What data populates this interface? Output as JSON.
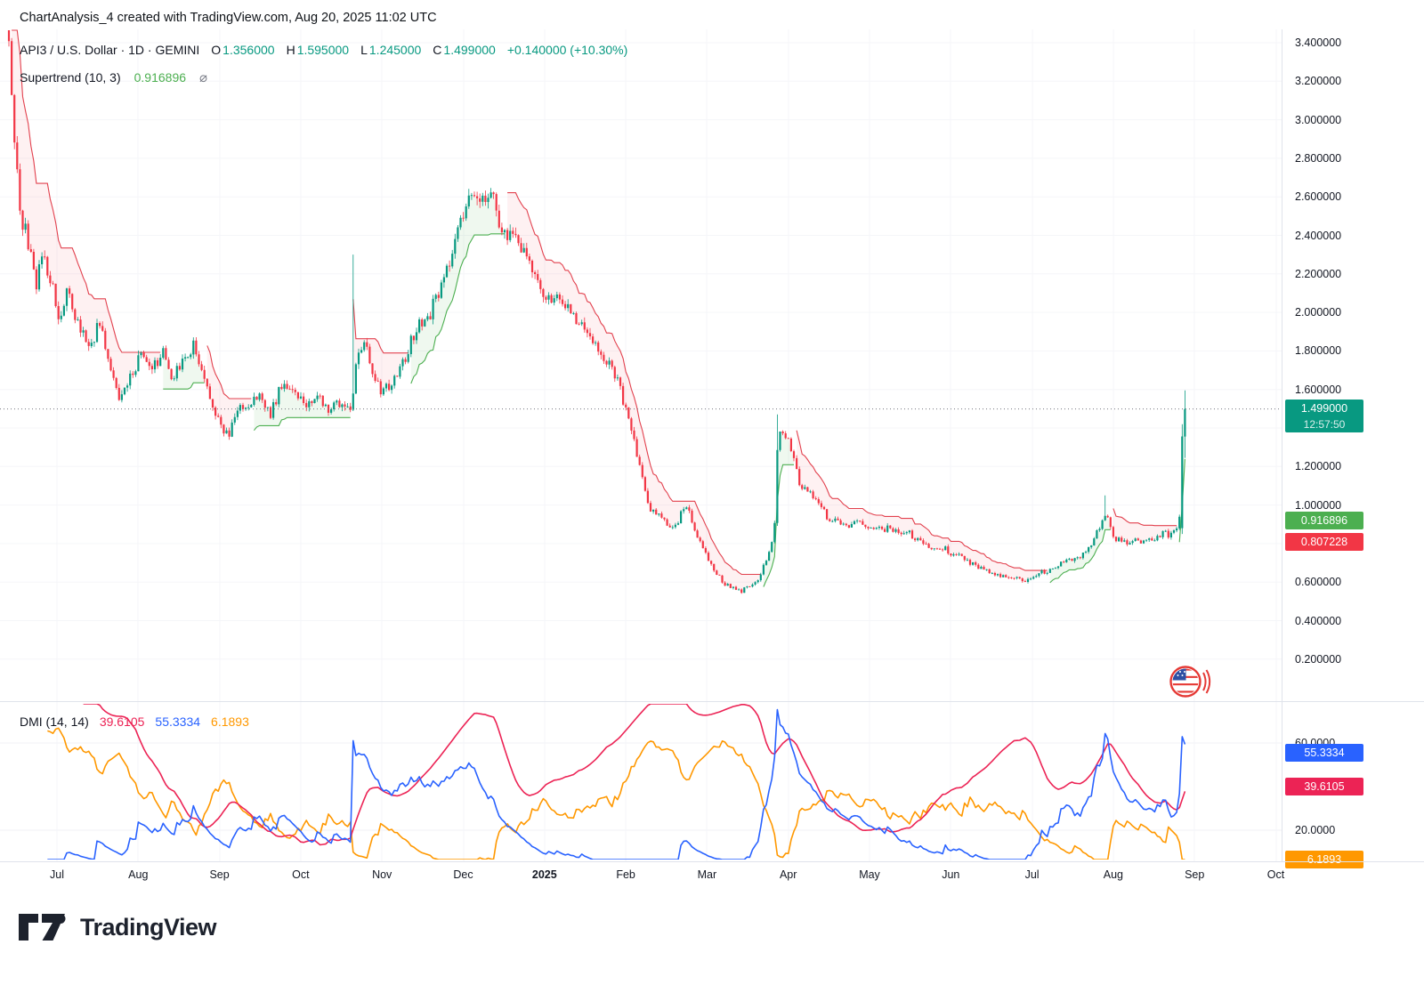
{
  "header": {
    "watermark": "ChartAnalysis_4 created with TradingView.com, Aug 20, 2025 11:02 UTC"
  },
  "legend": {
    "symbol": "API3 / U.S. Dollar · 1D · GEMINI",
    "o_label": "O",
    "o": "1.356000",
    "h_label": "H",
    "h": "1.595000",
    "l_label": "L",
    "l": "1.245000",
    "c_label": "C",
    "c": "1.499000",
    "change": "+0.140000 (+10.30%)",
    "supertrend_label": "Supertrend (10, 3)",
    "supertrend_value": "0.916896",
    "supertrend_icon": "⌀"
  },
  "dmi_legend": {
    "label": "DMI (14, 14)",
    "adx": "39.6105",
    "plus_di": "55.3334",
    "minus_di": "6.1893"
  },
  "price_axis": {
    "ticks": [
      "3.400000",
      "3.200000",
      "3.000000",
      "2.800000",
      "2.600000",
      "2.400000",
      "2.200000",
      "2.000000",
      "1.800000",
      "1.600000",
      "1.200000",
      "1.000000",
      "0.600000",
      "0.400000",
      "0.200000"
    ]
  },
  "dmi_axis": {
    "ticks": [
      "60.0000",
      "20.0000"
    ]
  },
  "time_axis": {
    "labels": [
      "Jul",
      "Aug",
      "Sep",
      "Oct",
      "Nov",
      "Dec",
      "2025",
      "Feb",
      "Mar",
      "Apr",
      "May",
      "Jun",
      "Jul",
      "Aug",
      "Sep",
      "Oct"
    ],
    "bold_index": 6
  },
  "badges": {
    "last_price": {
      "label": "1.499000",
      "countdown": "12:57:50",
      "value": 1.499,
      "color": "#089981"
    },
    "st_up": {
      "label": "0.916896",
      "value": 0.916896,
      "color": "#4caf50"
    },
    "st_down": {
      "label": "0.807228",
      "value": 0.807228,
      "color": "#f23645"
    },
    "dmi_plus": {
      "label": "55.3334",
      "value": 55.3334,
      "color": "#2962ff"
    },
    "dmi_adx": {
      "label": "39.6105",
      "value": 39.6105,
      "color": "#ec2355"
    },
    "dmi_minus": {
      "label": "6.1893",
      "value": 6.1893,
      "color": "#ff9800"
    }
  },
  "branding": {
    "name": "TradingView"
  },
  "colors": {
    "up": "#089981",
    "down": "#f23645",
    "st_up_line": "#4caf50",
    "st_down_line": "#e2414e",
    "st_up_fill": "rgba(76,175,80,0.09)",
    "st_down_fill": "rgba(242,54,69,0.07)",
    "dmi_plus": "#2962ff",
    "dmi_minus": "#ff9800",
    "dmi_adx": "#ec2355",
    "grid": "#f0f1f5",
    "grid_faint": "#f5f6f9",
    "axis_text": "#131722",
    "dotted_price_line": "#73767e"
  },
  "chart_data": {
    "type": "candlestick",
    "symbol": "API3/USD",
    "exchange": "GEMINI",
    "interval": "1D",
    "price_axis_range_shown": [
      0.2,
      3.4
    ],
    "dmi_axis_ticks": [
      20,
      60
    ],
    "last_bar": {
      "open": 1.356,
      "high": 1.595,
      "low": 1.245,
      "close": 1.499,
      "change": 0.14,
      "change_pct": 10.3
    },
    "indicators": {
      "supertrend": {
        "params": [
          10,
          3
        ],
        "last_up_band": 0.916896,
        "last_down_band": 0.807228
      },
      "dmi": {
        "params": [
          14,
          14
        ],
        "adx": 39.6105,
        "plus_di": 55.3334,
        "minus_di": 6.1893
      }
    },
    "close_path_anchors": [
      [
        10,
        3.44
      ],
      [
        16,
        2.9
      ],
      [
        22,
        2.52
      ],
      [
        30,
        2.4
      ],
      [
        40,
        2.14
      ],
      [
        48,
        2.3
      ],
      [
        58,
        2.16
      ],
      [
        66,
        1.97
      ],
      [
        76,
        2.1
      ],
      [
        88,
        1.94
      ],
      [
        100,
        1.82
      ],
      [
        112,
        1.94
      ],
      [
        126,
        1.68
      ],
      [
        135,
        1.53
      ],
      [
        146,
        1.65
      ],
      [
        158,
        1.79
      ],
      [
        170,
        1.68
      ],
      [
        182,
        1.8
      ],
      [
        194,
        1.66
      ],
      [
        206,
        1.74
      ],
      [
        218,
        1.84
      ],
      [
        228,
        1.66
      ],
      [
        238,
        1.52
      ],
      [
        248,
        1.42
      ],
      [
        256,
        1.35
      ],
      [
        268,
        1.5
      ],
      [
        280,
        1.53
      ],
      [
        292,
        1.56
      ],
      [
        304,
        1.47
      ],
      [
        318,
        1.65
      ],
      [
        330,
        1.6
      ],
      [
        344,
        1.52
      ],
      [
        358,
        1.56
      ],
      [
        370,
        1.5
      ],
      [
        382,
        1.53
      ],
      [
        394,
        1.5
      ],
      [
        402,
        1.77
      ],
      [
        410,
        1.83
      ],
      [
        420,
        1.68
      ],
      [
        430,
        1.58
      ],
      [
        440,
        1.63
      ],
      [
        450,
        1.7
      ],
      [
        460,
        1.82
      ],
      [
        470,
        1.95
      ],
      [
        482,
        1.98
      ],
      [
        494,
        2.12
      ],
      [
        506,
        2.25
      ],
      [
        516,
        2.45
      ],
      [
        526,
        2.6
      ],
      [
        536,
        2.62
      ],
      [
        546,
        2.58
      ],
      [
        552,
        2.68
      ],
      [
        558,
        2.48
      ],
      [
        566,
        2.44
      ],
      [
        574,
        2.38
      ],
      [
        582,
        2.36
      ],
      [
        590,
        2.3
      ],
      [
        600,
        2.18
      ],
      [
        610,
        2.1
      ],
      [
        620,
        2.08
      ],
      [
        630,
        2.07
      ],
      [
        640,
        2.0
      ],
      [
        650,
        1.95
      ],
      [
        660,
        1.87
      ],
      [
        670,
        1.84
      ],
      [
        680,
        1.75
      ],
      [
        690,
        1.69
      ],
      [
        700,
        1.55
      ],
      [
        710,
        1.4
      ],
      [
        720,
        1.16
      ],
      [
        730,
        0.98
      ],
      [
        740,
        0.95
      ],
      [
        750,
        0.9
      ],
      [
        760,
        0.89
      ],
      [
        770,
        1.01
      ],
      [
        780,
        0.88
      ],
      [
        790,
        0.78
      ],
      [
        800,
        0.68
      ],
      [
        812,
        0.6
      ],
      [
        822,
        0.57
      ],
      [
        832,
        0.55
      ],
      [
        842,
        0.58
      ],
      [
        852,
        0.62
      ],
      [
        862,
        0.72
      ],
      [
        870,
        0.86
      ],
      [
        874,
        1.38
      ],
      [
        882,
        1.35
      ],
      [
        890,
        1.29
      ],
      [
        898,
        1.1
      ],
      [
        906,
        1.07
      ],
      [
        914,
        1.04
      ],
      [
        922,
        1.02
      ],
      [
        930,
        0.91
      ],
      [
        940,
        0.93
      ],
      [
        950,
        0.89
      ],
      [
        960,
        0.91
      ],
      [
        970,
        0.9
      ],
      [
        980,
        0.88
      ],
      [
        990,
        0.87
      ],
      [
        1000,
        0.88
      ],
      [
        1010,
        0.85
      ],
      [
        1020,
        0.86
      ],
      [
        1030,
        0.82
      ],
      [
        1040,
        0.79
      ],
      [
        1050,
        0.77
      ],
      [
        1060,
        0.78
      ],
      [
        1070,
        0.74
      ],
      [
        1080,
        0.74
      ],
      [
        1090,
        0.7
      ],
      [
        1100,
        0.67
      ],
      [
        1110,
        0.66
      ],
      [
        1120,
        0.63
      ],
      [
        1130,
        0.63
      ],
      [
        1140,
        0.62
      ],
      [
        1150,
        0.61
      ],
      [
        1160,
        0.62
      ],
      [
        1170,
        0.65
      ],
      [
        1180,
        0.66
      ],
      [
        1190,
        0.69
      ],
      [
        1200,
        0.71
      ],
      [
        1210,
        0.72
      ],
      [
        1220,
        0.76
      ],
      [
        1230,
        0.83
      ],
      [
        1238,
        0.91
      ],
      [
        1242,
        0.96
      ],
      [
        1248,
        0.88
      ],
      [
        1254,
        0.82
      ],
      [
        1262,
        0.81
      ],
      [
        1270,
        0.8
      ],
      [
        1278,
        0.82
      ],
      [
        1286,
        0.81
      ],
      [
        1294,
        0.82
      ],
      [
        1302,
        0.84
      ],
      [
        1308,
        0.86
      ],
      [
        1314,
        0.84
      ],
      [
        1320,
        0.87
      ],
      [
        1325,
        0.92
      ],
      [
        1328,
        1.36
      ],
      [
        1332,
        1.499
      ]
    ],
    "high_spikes": [
      [
        20,
        2.9
      ],
      [
        398,
        2.3
      ],
      [
        874,
        1.47
      ],
      [
        1241,
        1.05
      ]
    ],
    "final_bars": [
      {
        "open": 0.88,
        "high": 1.42,
        "low": 0.85,
        "close": 1.356
      },
      {
        "open": 1.356,
        "high": 1.595,
        "low": 1.245,
        "close": 1.499
      }
    ]
  }
}
